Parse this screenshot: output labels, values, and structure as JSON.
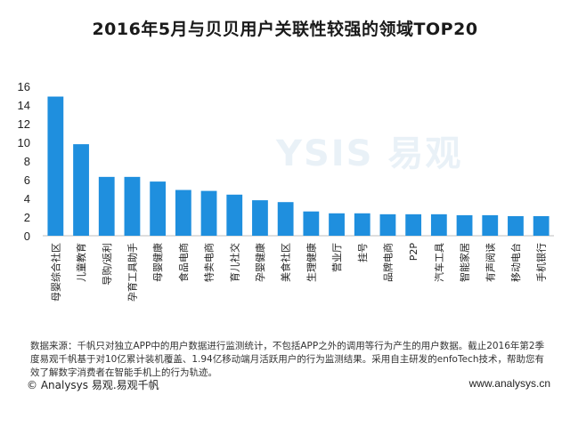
{
  "title": "2016年5月与贝贝用户关联性较强的领域TOP20",
  "watermark": "YSIS 易观",
  "source_text": "数据来源：千帆只对独立APP中的用户数据进行监测统计，不包括APP之外的调用等行为产生的用户数据。截止2016年第2季度易观千帆基于对10亿累计装机覆盖、1.94亿移动端月活跃用户的行为监测结果。采用自主研发的enfoTech技术，帮助您有效了解数字消费者在智能手机上的行为轨迹。",
  "footer": {
    "left": "© Analysys 易观.易观千帆",
    "right": "www.analysys.cn"
  },
  "chart_data": {
    "type": "bar",
    "title": "2016年5月与贝贝用户关联性较强的领域TOP20",
    "xlabel": "",
    "ylabel": "",
    "ylim": [
      0,
      16
    ],
    "yticks": [
      0,
      2,
      4,
      6,
      8,
      10,
      12,
      14,
      16
    ],
    "grid": false,
    "bar_color": "#1f8fde",
    "categories": [
      "母婴综合社区",
      "儿童教育",
      "导购/返利",
      "孕育工具助手",
      "母婴健康",
      "食品电商",
      "特卖电商",
      "育儿社交",
      "孕婴健康",
      "美食社区",
      "生理健康",
      "营业厅",
      "挂号",
      "品牌电商",
      "P2P",
      "汽车工具",
      "智能家居",
      "有声阅读",
      "移动电台",
      "手机银行"
    ],
    "values": [
      14.9,
      9.8,
      6.3,
      6.3,
      5.8,
      4.9,
      4.8,
      4.4,
      3.8,
      3.6,
      2.6,
      2.4,
      2.4,
      2.3,
      2.3,
      2.3,
      2.2,
      2.2,
      2.1,
      2.1
    ]
  }
}
